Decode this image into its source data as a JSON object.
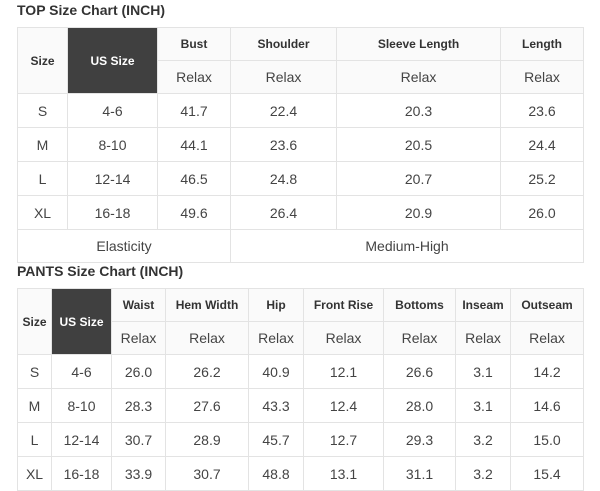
{
  "top": {
    "title": "TOP Size Chart (INCH)",
    "headers": [
      "Size",
      "US Size",
      "Bust",
      "Shoulder",
      "Sleeve Length",
      "Length"
    ],
    "subheader": "Relax",
    "rows": [
      [
        "S",
        "4-6",
        "41.7",
        "22.4",
        "20.3",
        "23.6"
      ],
      [
        "M",
        "8-10",
        "44.1",
        "23.6",
        "20.5",
        "24.4"
      ],
      [
        "L",
        "12-14",
        "46.5",
        "24.8",
        "20.7",
        "25.2"
      ],
      [
        "XL",
        "16-18",
        "49.6",
        "26.4",
        "20.9",
        "26.0"
      ]
    ],
    "elasticity_label": "Elasticity",
    "elasticity_value": "Medium-High"
  },
  "pants": {
    "title": "PANTS Size Chart (INCH)",
    "headers": [
      "Size",
      "US Size",
      "Waist",
      "Hem Width",
      "Hip",
      "Front Rise",
      "Bottoms",
      "Inseam",
      "Outseam"
    ],
    "subheader": "Relax",
    "rows": [
      [
        "S",
        "4-6",
        "26.0",
        "26.2",
        "40.9",
        "12.1",
        "26.6",
        "3.1",
        "14.2"
      ],
      [
        "M",
        "8-10",
        "28.3",
        "27.6",
        "43.3",
        "12.4",
        "28.0",
        "3.1",
        "14.6"
      ],
      [
        "L",
        "12-14",
        "30.7",
        "28.9",
        "45.7",
        "12.7",
        "29.3",
        "3.2",
        "15.0"
      ],
      [
        "XL",
        "16-18",
        "33.9",
        "30.7",
        "48.8",
        "13.1",
        "31.1",
        "3.2",
        "15.4"
      ]
    ]
  },
  "colors": {
    "header_dark": "#404040",
    "border": "#e3e3e3"
  }
}
